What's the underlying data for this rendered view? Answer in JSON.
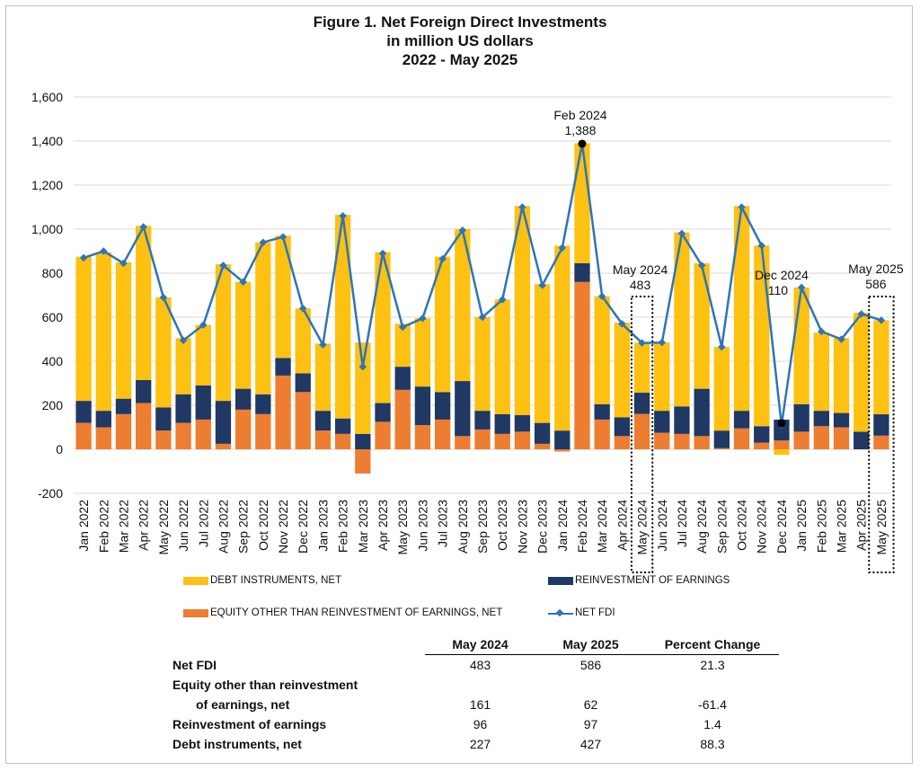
{
  "chart_data": {
    "type": "bar",
    "title": [
      "Figure 1. Net Foreign Direct Investments",
      "in million US dollars",
      "2022 - May 2025"
    ],
    "ylim": [
      -200,
      1600
    ],
    "yticks": [
      "-200",
      "0",
      "200",
      "400",
      "600",
      "800",
      "1,000",
      "1,200",
      "1,400",
      "1,600"
    ],
    "categories": [
      "Jan 2022",
      "Feb 2022",
      "Mar 2022",
      "Apr 2022",
      "May 2022",
      "Jun 2022",
      "Jul 2022",
      "Aug 2022",
      "Sep 2022",
      "Oct 2022",
      "Nov 2022",
      "Dec 2022",
      "Jan 2023",
      "Feb 2023",
      "Mar 2023",
      "Apr 2023",
      "May 2023",
      "Jun 2023",
      "Jul 2023",
      "Aug 2023",
      "Sep 2023",
      "Oct 2023",
      "Nov 2023",
      "Dec 2023",
      "Jan 2024",
      "Feb 2024",
      "Mar 2024",
      "Apr 2024",
      "May 2024",
      "Jun 2024",
      "Jul 2024",
      "Aug 2024",
      "Sep 2024",
      "Oct 2024",
      "Nov 2024",
      "Dec 2024",
      "Jan 2025",
      "Feb 2025",
      "Mar 2025",
      "Apr 2025",
      "May 2025"
    ],
    "series": [
      {
        "name": "EQUITY OTHER THAN REINVESTMENT OF EARNINGS, NET",
        "kind": "bar",
        "color": "#ed7d31",
        "values": [
          120,
          100,
          160,
          210,
          85,
          120,
          135,
          25,
          180,
          160,
          335,
          260,
          85,
          70,
          -110,
          125,
          270,
          110,
          135,
          60,
          90,
          70,
          80,
          25,
          -10,
          760,
          135,
          60,
          161,
          75,
          70,
          60,
          5,
          95,
          30,
          40,
          80,
          105,
          100,
          0,
          62
        ]
      },
      {
        "name": "REINVESTMENT OF EARNINGS",
        "kind": "bar",
        "color": "#1f3864",
        "values": [
          100,
          75,
          70,
          105,
          105,
          130,
          155,
          195,
          95,
          90,
          80,
          85,
          90,
          70,
          70,
          85,
          105,
          175,
          125,
          250,
          85,
          90,
          75,
          95,
          85,
          85,
          70,
          85,
          96,
          100,
          125,
          215,
          80,
          80,
          75,
          95,
          125,
          70,
          65,
          80,
          97
        ]
      },
      {
        "name": "DEBT INSTRUMENTS, NET",
        "kind": "bar",
        "color": "#fdc112",
        "values": [
          655,
          720,
          620,
          700,
          500,
          255,
          275,
          620,
          485,
          690,
          555,
          295,
          305,
          925,
          415,
          685,
          195,
          310,
          615,
          690,
          425,
          520,
          950,
          630,
          840,
          545,
          490,
          430,
          227,
          310,
          790,
          570,
          380,
          930,
          820,
          -25,
          530,
          355,
          340,
          540,
          427
        ]
      },
      {
        "name": "NET FDI",
        "kind": "line",
        "color": "#2e75b6",
        "values": [
          870,
          900,
          845,
          1010,
          690,
          495,
          565,
          835,
          760,
          940,
          965,
          640,
          475,
          1060,
          375,
          890,
          555,
          595,
          865,
          995,
          600,
          680,
          1100,
          745,
          915,
          1388,
          695,
          570,
          483,
          485,
          980,
          835,
          465,
          1100,
          925,
          110,
          735,
          535,
          500,
          615,
          586
        ]
      }
    ],
    "annotations": [
      {
        "label": "Feb 2024",
        "value": "1,388",
        "category": "Feb 2024"
      },
      {
        "label": "May 2024",
        "value": "483",
        "category": "May 2024"
      },
      {
        "label": "Dec 2024",
        "value": "110",
        "category": "Dec 2024"
      },
      {
        "label": "May 2025",
        "value": "586",
        "category": "May 2025"
      }
    ],
    "legend_position": "bottom"
  },
  "legend": {
    "debt": "DEBT INSTRUMENTS, NET",
    "reinv": "REINVESTMENT OF EARNINGS",
    "equity": "EQUITY OTHER THAN REINVESTMENT OF EARNINGS, NET",
    "net": "NET FDI",
    "colors": {
      "debt": "#fdc112",
      "reinv": "#1f3864",
      "equity": "#ed7d31",
      "net": "#2e75b6"
    }
  },
  "table": {
    "headers": [
      "May 2024",
      "May 2025",
      "Percent Change"
    ],
    "rows": [
      {
        "label": "Net FDI",
        "v1": "483",
        "v2": "586",
        "v3": "21.3"
      },
      {
        "label": "Equity other than reinvestment",
        "v1": "",
        "v2": "",
        "v3": ""
      },
      {
        "label": "of earnings, net",
        "v1": "161",
        "v2": "62",
        "v3": "-61.4"
      },
      {
        "label": "Reinvestment of earnings",
        "v1": "96",
        "v2": "97",
        "v3": "1.4"
      },
      {
        "label": "Debt instruments, net",
        "v1": "227",
        "v2": "427",
        "v3": "88.3"
      }
    ]
  }
}
